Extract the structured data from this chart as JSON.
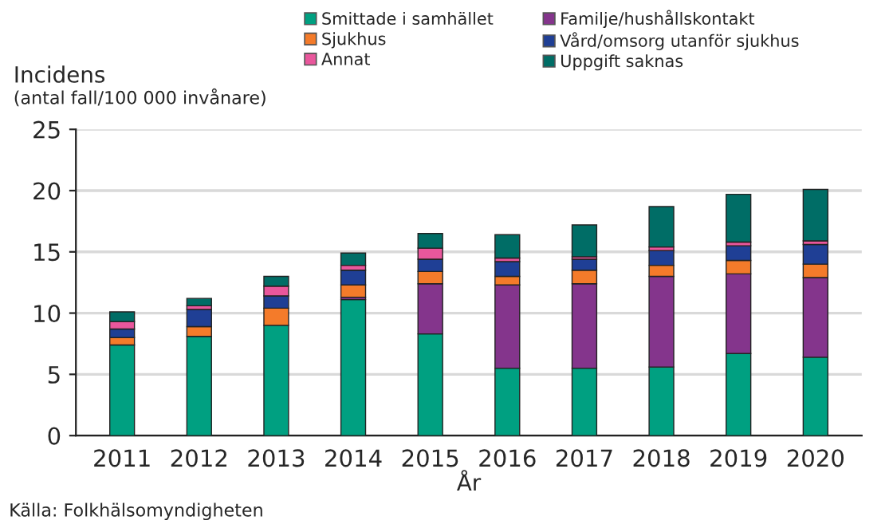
{
  "chart_data": {
    "type": "bar",
    "stacked": true,
    "ylabel": "Incidens",
    "subtitle": "(antal fall/100 000 invånare)",
    "xlabel": "År",
    "categories": [
      "2011",
      "2012",
      "2013",
      "2014",
      "2015",
      "2016",
      "2017",
      "2018",
      "2019",
      "2020"
    ],
    "series": [
      {
        "name": "Smittade i samhället",
        "color": "#00a081",
        "values": [
          7.4,
          8.1,
          9.0,
          11.1,
          8.3,
          5.5,
          5.5,
          5.6,
          6.7,
          6.4
        ]
      },
      {
        "name": "Familje/hushållskontakt",
        "color": "#84358c",
        "values": [
          null,
          null,
          null,
          0.2,
          4.1,
          6.8,
          6.9,
          7.4,
          6.5,
          6.5
        ]
      },
      {
        "name": "Sjukhus",
        "color": "#f47b2a",
        "values": [
          0.6,
          0.8,
          1.4,
          1.0,
          1.0,
          0.7,
          1.1,
          0.9,
          1.1,
          1.1
        ]
      },
      {
        "name": "Vård/omsorg utanför sjukhus",
        "color": "#1f3f95",
        "values": [
          0.7,
          1.4,
          1.0,
          1.2,
          1.0,
          1.2,
          0.9,
          1.2,
          1.2,
          1.6
        ]
      },
      {
        "name": "Annat",
        "color": "#e9579c",
        "values": [
          0.6,
          0.3,
          0.8,
          0.4,
          0.9,
          0.3,
          0.2,
          0.3,
          0.3,
          0.3
        ]
      },
      {
        "name": "Uppgift saknas",
        "color": "#006d66",
        "values": [
          0.8,
          0.6,
          0.8,
          1.0,
          1.2,
          1.9,
          2.6,
          3.3,
          3.9,
          4.2
        ]
      }
    ],
    "ylim": [
      0,
      25
    ],
    "yticks": [
      0,
      5,
      10,
      15,
      20,
      25
    ],
    "grid": "y",
    "legend": "top",
    "annotations": [
      "Källa: Folkhälsomyndigheten"
    ]
  }
}
